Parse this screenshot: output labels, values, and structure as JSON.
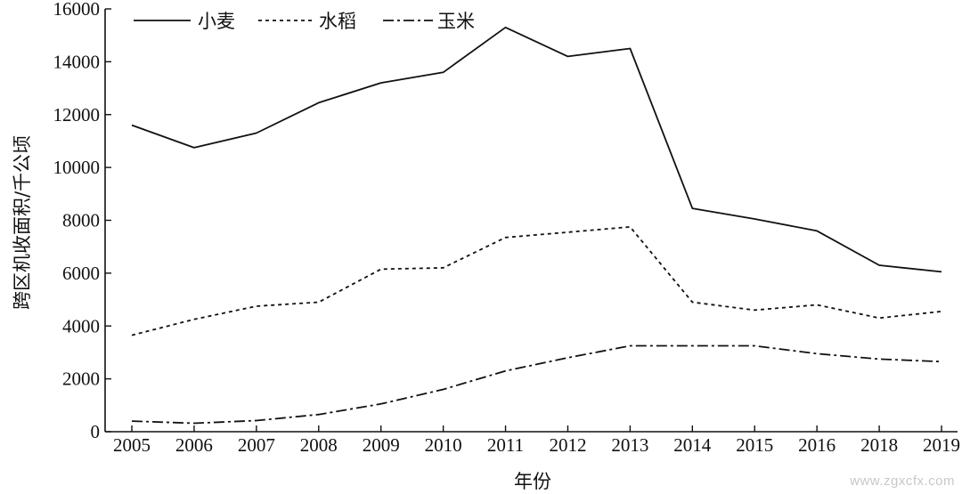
{
  "chart_data": {
    "type": "line",
    "title": "",
    "xlabel": "年份",
    "ylabel": "跨区机收面积/千公顷",
    "ylim": [
      0,
      16000
    ],
    "y_ticks": [
      0,
      2000,
      4000,
      6000,
      8000,
      10000,
      12000,
      14000,
      16000
    ],
    "categories": [
      "2005",
      "2006",
      "2007",
      "2008",
      "2009",
      "2010",
      "2011",
      "2012",
      "2013",
      "2014",
      "2015",
      "2016",
      "2018",
      "2019"
    ],
    "legend_position": "top-left",
    "grid": false,
    "series": [
      {
        "name": "小麦",
        "style": "solid",
        "values": [
          11600,
          10750,
          11300,
          12450,
          13200,
          13600,
          15300,
          14200,
          14500,
          8450,
          8050,
          7600,
          6300,
          6050
        ]
      },
      {
        "name": "水稻",
        "style": "dotted",
        "values": [
          3650,
          4250,
          4750,
          4900,
          6150,
          6200,
          7350,
          7550,
          7750,
          4900,
          4600,
          4800,
          4300,
          4550
        ]
      },
      {
        "name": "玉米",
        "style": "dash-dot",
        "values": [
          400,
          320,
          420,
          650,
          1050,
          1600,
          2300,
          2800,
          3250,
          3250,
          3250,
          2950,
          2750,
          2650
        ]
      }
    ]
  },
  "watermark": "www.zgxcfx.com"
}
